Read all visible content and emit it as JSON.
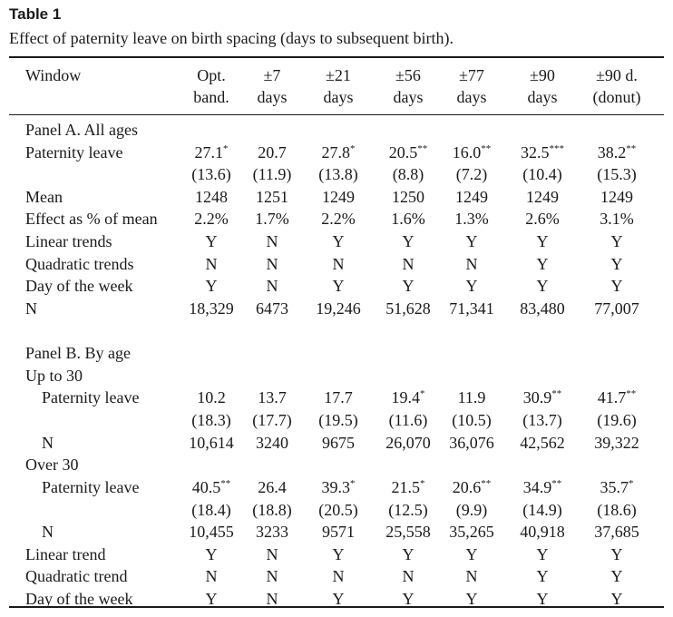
{
  "title": "Table 1",
  "caption": "Effect of paternity leave on birth spacing (days to subsequent birth).",
  "header": {
    "window_label": "Window",
    "columns": [
      {
        "line1": "Opt.",
        "line2": "band."
      },
      {
        "line1": "±7",
        "line2": "days"
      },
      {
        "line1": "±21",
        "line2": "days"
      },
      {
        "line1": "±56",
        "line2": "days"
      },
      {
        "line1": "±77",
        "line2": "days"
      },
      {
        "line1": "±90",
        "line2": "days"
      },
      {
        "line1": "±90 d.",
        "line2": "(donut)"
      }
    ]
  },
  "rows": [
    {
      "label": "Panel A. All ages",
      "indent": 0,
      "cells": []
    },
    {
      "label": "Paternity leave",
      "indent": 0,
      "cells": [
        {
          "v": "27.1",
          "s": "*"
        },
        {
          "v": "20.7",
          "s": ""
        },
        {
          "v": "27.8",
          "s": "*"
        },
        {
          "v": "20.5",
          "s": "**"
        },
        {
          "v": "16.0",
          "s": "**"
        },
        {
          "v": "32.5",
          "s": "***"
        },
        {
          "v": "38.2",
          "s": "**"
        }
      ]
    },
    {
      "label": "",
      "indent": 0,
      "cells": [
        {
          "v": "(13.6)",
          "s": ""
        },
        {
          "v": "(11.9)",
          "s": ""
        },
        {
          "v": "(13.8)",
          "s": ""
        },
        {
          "v": "(8.8)",
          "s": ""
        },
        {
          "v": "(7.2)",
          "s": ""
        },
        {
          "v": "(10.4)",
          "s": ""
        },
        {
          "v": "(15.3)",
          "s": ""
        }
      ]
    },
    {
      "label": "Mean",
      "indent": 0,
      "cells": [
        {
          "v": "1248",
          "s": ""
        },
        {
          "v": "1251",
          "s": ""
        },
        {
          "v": "1249",
          "s": ""
        },
        {
          "v": "1250",
          "s": ""
        },
        {
          "v": "1249",
          "s": ""
        },
        {
          "v": "1249",
          "s": ""
        },
        {
          "v": "1249",
          "s": ""
        }
      ]
    },
    {
      "label": "Effect as % of mean",
      "indent": 0,
      "cells": [
        {
          "v": "2.2%",
          "s": ""
        },
        {
          "v": "1.7%",
          "s": ""
        },
        {
          "v": "2.2%",
          "s": ""
        },
        {
          "v": "1.6%",
          "s": ""
        },
        {
          "v": "1.3%",
          "s": ""
        },
        {
          "v": "2.6%",
          "s": ""
        },
        {
          "v": "3.1%",
          "s": ""
        }
      ]
    },
    {
      "label": "Linear trends",
      "indent": 0,
      "cells": [
        {
          "v": "Y",
          "s": ""
        },
        {
          "v": "N",
          "s": ""
        },
        {
          "v": "Y",
          "s": ""
        },
        {
          "v": "Y",
          "s": ""
        },
        {
          "v": "Y",
          "s": ""
        },
        {
          "v": "Y",
          "s": ""
        },
        {
          "v": "Y",
          "s": ""
        }
      ]
    },
    {
      "label": "Quadratic trends",
      "indent": 0,
      "cells": [
        {
          "v": "N",
          "s": ""
        },
        {
          "v": "N",
          "s": ""
        },
        {
          "v": "N",
          "s": ""
        },
        {
          "v": "N",
          "s": ""
        },
        {
          "v": "N",
          "s": ""
        },
        {
          "v": "Y",
          "s": ""
        },
        {
          "v": "Y",
          "s": ""
        }
      ]
    },
    {
      "label": "Day of the week",
      "indent": 0,
      "cells": [
        {
          "v": "Y",
          "s": ""
        },
        {
          "v": "N",
          "s": ""
        },
        {
          "v": "Y",
          "s": ""
        },
        {
          "v": "Y",
          "s": ""
        },
        {
          "v": "Y",
          "s": ""
        },
        {
          "v": "Y",
          "s": ""
        },
        {
          "v": "Y",
          "s": ""
        }
      ]
    },
    {
      "label": "N",
      "indent": 0,
      "cells": [
        {
          "v": "18,329",
          "s": ""
        },
        {
          "v": "6473",
          "s": ""
        },
        {
          "v": "19,246",
          "s": ""
        },
        {
          "v": "51,628",
          "s": ""
        },
        {
          "v": "71,341",
          "s": ""
        },
        {
          "v": "83,480",
          "s": ""
        },
        {
          "v": "77,007",
          "s": ""
        }
      ]
    },
    {
      "label": "",
      "indent": 0,
      "cells": []
    },
    {
      "label": "Panel B. By age",
      "indent": 0,
      "cells": []
    },
    {
      "label": "Up to 30",
      "indent": 0,
      "cells": []
    },
    {
      "label": "Paternity leave",
      "indent": 1,
      "cells": [
        {
          "v": "10.2",
          "s": ""
        },
        {
          "v": "13.7",
          "s": ""
        },
        {
          "v": "17.7",
          "s": ""
        },
        {
          "v": "19.4",
          "s": "*"
        },
        {
          "v": "11.9",
          "s": ""
        },
        {
          "v": "30.9",
          "s": "**"
        },
        {
          "v": "41.7",
          "s": "**"
        }
      ]
    },
    {
      "label": "",
      "indent": 0,
      "cells": [
        {
          "v": "(18.3)",
          "s": ""
        },
        {
          "v": "(17.7)",
          "s": ""
        },
        {
          "v": "(19.5)",
          "s": ""
        },
        {
          "v": "(11.6)",
          "s": ""
        },
        {
          "v": "(10.5)",
          "s": ""
        },
        {
          "v": "(13.7)",
          "s": ""
        },
        {
          "v": "(19.6)",
          "s": ""
        }
      ]
    },
    {
      "label": "N",
      "indent": 1,
      "cells": [
        {
          "v": "10,614",
          "s": ""
        },
        {
          "v": "3240",
          "s": ""
        },
        {
          "v": "9675",
          "s": ""
        },
        {
          "v": "26,070",
          "s": ""
        },
        {
          "v": "36,076",
          "s": ""
        },
        {
          "v": "42,562",
          "s": ""
        },
        {
          "v": "39,322",
          "s": ""
        }
      ]
    },
    {
      "label": "Over 30",
      "indent": 0,
      "cells": []
    },
    {
      "label": "Paternity leave",
      "indent": 1,
      "cells": [
        {
          "v": "40.5",
          "s": "**"
        },
        {
          "v": "26.4",
          "s": ""
        },
        {
          "v": "39.3",
          "s": "*"
        },
        {
          "v": "21.5",
          "s": "*"
        },
        {
          "v": "20.6",
          "s": "**"
        },
        {
          "v": "34.9",
          "s": "**"
        },
        {
          "v": "35.7",
          "s": "*"
        }
      ]
    },
    {
      "label": "",
      "indent": 0,
      "cells": [
        {
          "v": "(18.4)",
          "s": ""
        },
        {
          "v": "(18.8)",
          "s": ""
        },
        {
          "v": "(20.5)",
          "s": ""
        },
        {
          "v": "(12.5)",
          "s": ""
        },
        {
          "v": "(9.9)",
          "s": ""
        },
        {
          "v": "(14.9)",
          "s": ""
        },
        {
          "v": "(18.6)",
          "s": ""
        }
      ]
    },
    {
      "label": "N",
      "indent": 1,
      "cells": [
        {
          "v": "10,455",
          "s": ""
        },
        {
          "v": "3233",
          "s": ""
        },
        {
          "v": "9571",
          "s": ""
        },
        {
          "v": "25,558",
          "s": ""
        },
        {
          "v": "35,265",
          "s": ""
        },
        {
          "v": "40,918",
          "s": ""
        },
        {
          "v": "37,685",
          "s": ""
        }
      ]
    },
    {
      "label": "Linear trend",
      "indent": 0,
      "cells": [
        {
          "v": "Y",
          "s": ""
        },
        {
          "v": "N",
          "s": ""
        },
        {
          "v": "Y",
          "s": ""
        },
        {
          "v": "Y",
          "s": ""
        },
        {
          "v": "Y",
          "s": ""
        },
        {
          "v": "Y",
          "s": ""
        },
        {
          "v": "Y",
          "s": ""
        }
      ]
    },
    {
      "label": "Quadratic trend",
      "indent": 0,
      "cells": [
        {
          "v": "N",
          "s": ""
        },
        {
          "v": "N",
          "s": ""
        },
        {
          "v": "N",
          "s": ""
        },
        {
          "v": "N",
          "s": ""
        },
        {
          "v": "N",
          "s": ""
        },
        {
          "v": "Y",
          "s": ""
        },
        {
          "v": "Y",
          "s": ""
        }
      ]
    },
    {
      "label": "Day of the week",
      "indent": 0,
      "cells": [
        {
          "v": "Y",
          "s": ""
        },
        {
          "v": "N",
          "s": ""
        },
        {
          "v": "Y",
          "s": ""
        },
        {
          "v": "Y",
          "s": ""
        },
        {
          "v": "Y",
          "s": ""
        },
        {
          "v": "Y",
          "s": ""
        },
        {
          "v": "Y",
          "s": ""
        }
      ]
    }
  ]
}
